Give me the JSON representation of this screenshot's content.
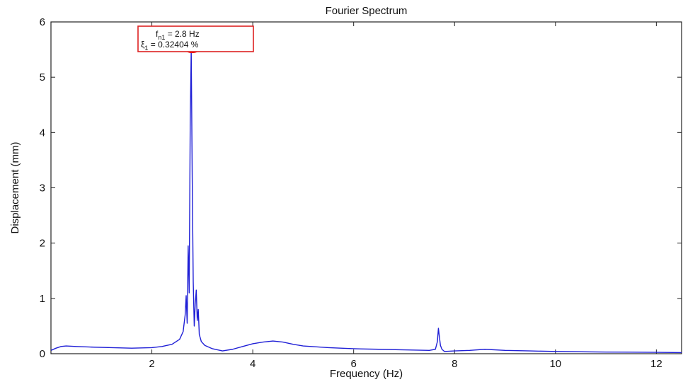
{
  "chart_data": {
    "type": "line",
    "title": "Fourier Spectrum",
    "xlabel": "Frequency (Hz)",
    "ylabel": "Displacement (mm)",
    "xlim": [
      0,
      12.5
    ],
    "ylim": [
      0,
      6
    ],
    "xticks": [
      2,
      4,
      6,
      8,
      10,
      12
    ],
    "yticks": [
      0,
      1,
      2,
      3,
      4,
      5,
      6
    ],
    "grid": false,
    "series": [
      {
        "color": "#1f1fd6",
        "points": [
          [
            0.0,
            0.06
          ],
          [
            0.1,
            0.1
          ],
          [
            0.2,
            0.13
          ],
          [
            0.3,
            0.14
          ],
          [
            0.5,
            0.13
          ],
          [
            0.8,
            0.12
          ],
          [
            1.2,
            0.11
          ],
          [
            1.6,
            0.1
          ],
          [
            2.0,
            0.11
          ],
          [
            2.2,
            0.13
          ],
          [
            2.4,
            0.17
          ],
          [
            2.55,
            0.26
          ],
          [
            2.62,
            0.4
          ],
          [
            2.66,
            0.7
          ],
          [
            2.68,
            1.05
          ],
          [
            2.7,
            0.55
          ],
          [
            2.72,
            1.95
          ],
          [
            2.74,
            1.1
          ],
          [
            2.76,
            4.1
          ],
          [
            2.78,
            5.5
          ],
          [
            2.8,
            3.2
          ],
          [
            2.82,
            1.3
          ],
          [
            2.84,
            0.5
          ],
          [
            2.86,
            0.9
          ],
          [
            2.88,
            1.15
          ],
          [
            2.9,
            0.6
          ],
          [
            2.92,
            0.8
          ],
          [
            2.94,
            0.35
          ],
          [
            2.98,
            0.22
          ],
          [
            3.05,
            0.15
          ],
          [
            3.2,
            0.09
          ],
          [
            3.4,
            0.05
          ],
          [
            3.6,
            0.08
          ],
          [
            3.8,
            0.13
          ],
          [
            4.0,
            0.18
          ],
          [
            4.2,
            0.21
          ],
          [
            4.4,
            0.23
          ],
          [
            4.6,
            0.21
          ],
          [
            4.8,
            0.17
          ],
          [
            5.0,
            0.14
          ],
          [
            5.5,
            0.11
          ],
          [
            6.0,
            0.09
          ],
          [
            6.5,
            0.08
          ],
          [
            7.0,
            0.07
          ],
          [
            7.5,
            0.06
          ],
          [
            7.62,
            0.08
          ],
          [
            7.66,
            0.22
          ],
          [
            7.68,
            0.46
          ],
          [
            7.7,
            0.3
          ],
          [
            7.72,
            0.15
          ],
          [
            7.75,
            0.08
          ],
          [
            7.8,
            0.04
          ],
          [
            8.0,
            0.05
          ],
          [
            8.3,
            0.06
          ],
          [
            8.6,
            0.08
          ],
          [
            9.0,
            0.06
          ],
          [
            9.5,
            0.05
          ],
          [
            10.0,
            0.04
          ],
          [
            11.0,
            0.03
          ],
          [
            12.0,
            0.025
          ],
          [
            12.5,
            0.02
          ]
        ]
      }
    ],
    "peak_marker": {
      "x": 2.8,
      "y": 5.5,
      "color": "#ee1111"
    },
    "annotation": {
      "line1_main": "f",
      "line1_sub": "n1",
      "line1_rest": " = 2.8 Hz",
      "line2_main": "ξ",
      "line2_sub": "1",
      "line2_rest": " = 0.32404 %",
      "border_color": "#dd2222"
    }
  }
}
